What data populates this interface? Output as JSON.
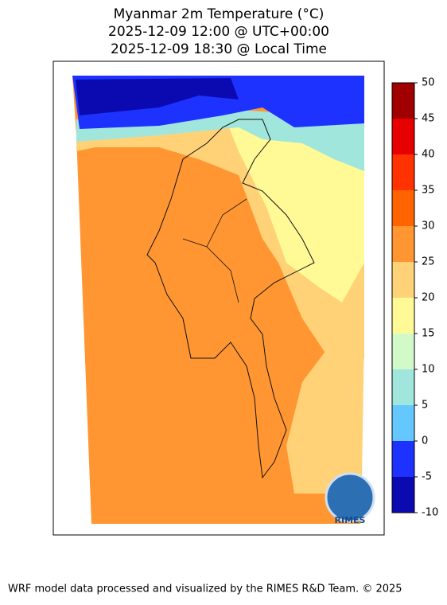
{
  "title": [
    "Myanmar 2m Temperature (°C)",
    "2025-12-09 12:00 @ UTC+00:00",
    "2025-12-09 18:30 @ Local Time"
  ],
  "colorbar": {
    "lim": [
      -10,
      50
    ],
    "ticks": [
      -10,
      -5,
      0,
      5,
      10,
      15,
      20,
      25,
      30,
      35,
      40,
      45,
      50
    ],
    "colors": [
      "#0a0ab0",
      "#1e32ff",
      "#64c8ff",
      "#a0e6dc",
      "#d2fac8",
      "#fffa96",
      "#ffd278",
      "#ff9632",
      "#ff6400",
      "#ff3200",
      "#e60000",
      "#a00000"
    ]
  },
  "logo": "RIMES",
  "footer": "WRF model data processed and visualized by the RIMES R&D Team. © 2025"
}
